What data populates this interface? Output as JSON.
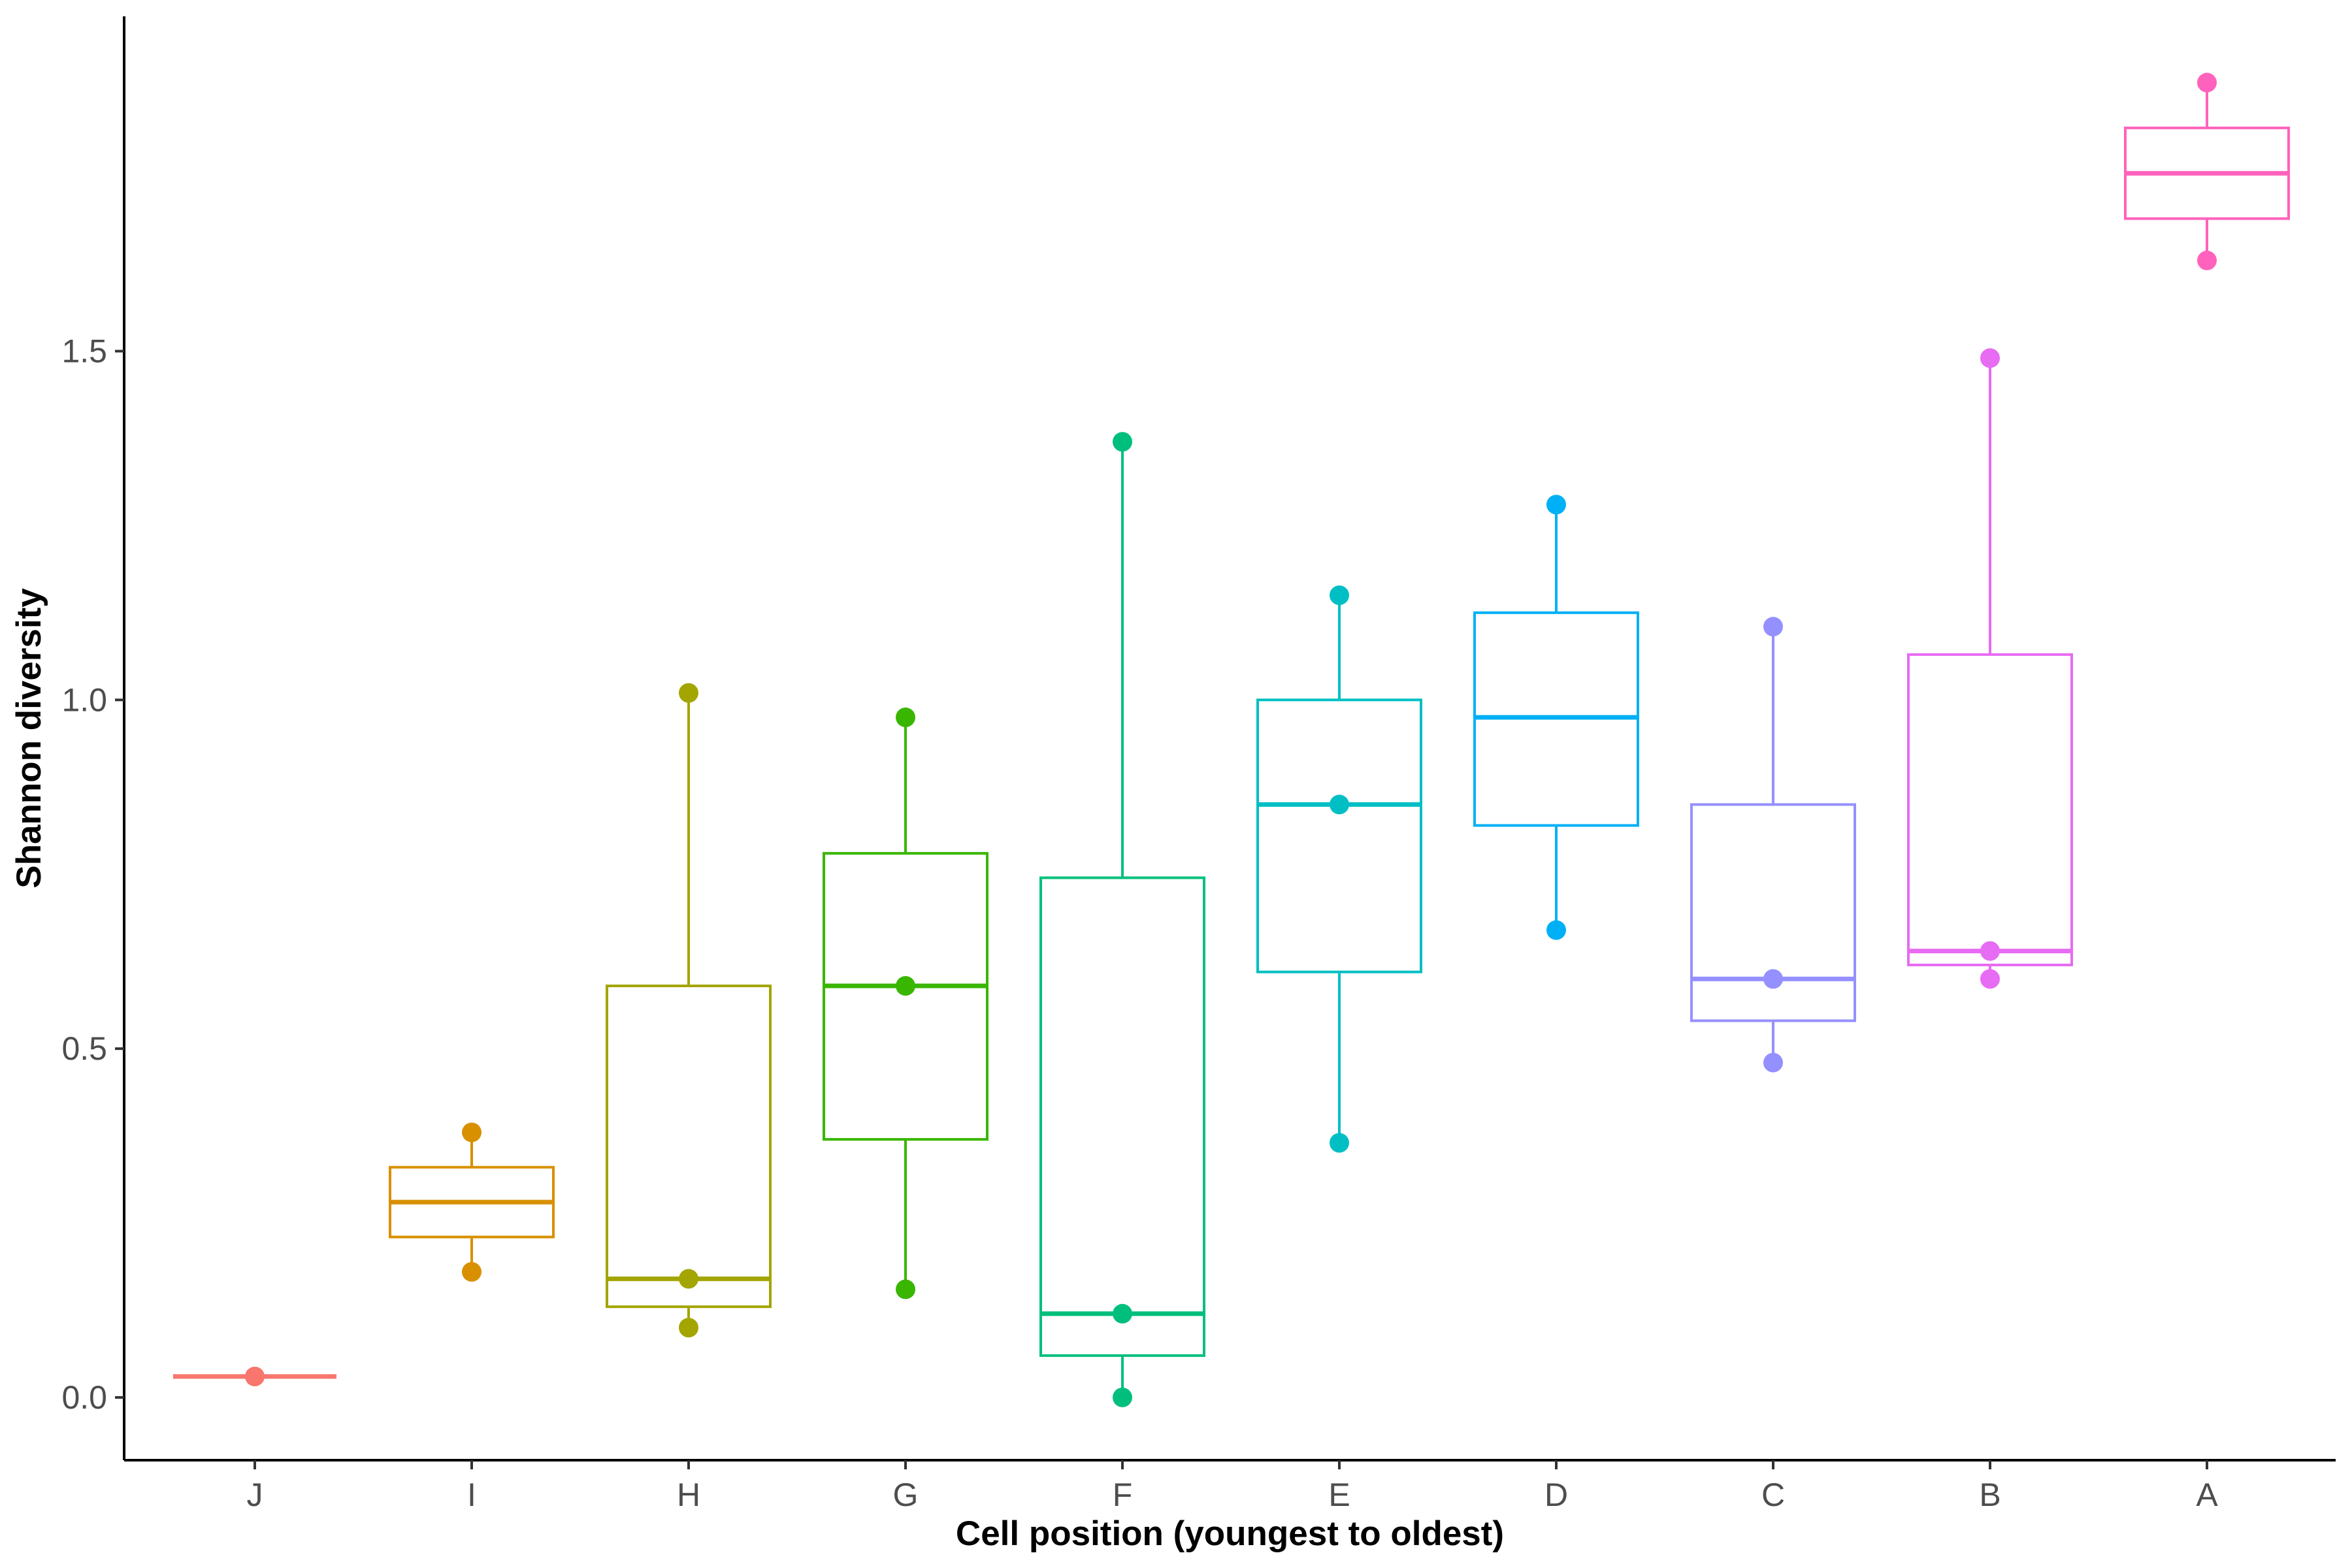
{
  "chart_data": {
    "type": "box",
    "title": "",
    "xlabel": "Cell position (youngest to oldest)",
    "ylabel": "Shannon diversity",
    "ylim": [
      -0.09,
      1.98
    ],
    "yticks": [
      "0.0",
      "0.5",
      "1.0",
      "1.5"
    ],
    "ytick_values": [
      0.0,
      0.5,
      1.0,
      1.5
    ],
    "grid": false,
    "legend": "none",
    "categories": [
      "J",
      "I",
      "H",
      "G",
      "F",
      "E",
      "D",
      "C",
      "B",
      "A"
    ],
    "boxes": [
      {
        "category": "J",
        "color": "#F8766D",
        "min": 0.03,
        "q1": 0.03,
        "median": 0.03,
        "q3": 0.03,
        "max": 0.03,
        "points": [
          0.03
        ]
      },
      {
        "category": "I",
        "color": "#D89000",
        "min": 0.18,
        "q1": 0.23,
        "median": 0.28,
        "q3": 0.33,
        "max": 0.38,
        "points": [
          0.38,
          0.18
        ]
      },
      {
        "category": "H",
        "color": "#A3A500",
        "min": 0.1,
        "q1": 0.13,
        "median": 0.17,
        "q3": 0.59,
        "max": 1.01,
        "points": [
          1.01,
          0.17,
          0.1
        ]
      },
      {
        "category": "G",
        "color": "#39B600",
        "min": 0.155,
        "q1": 0.37,
        "median": 0.59,
        "q3": 0.78,
        "max": 0.975,
        "points": [
          0.975,
          0.59,
          0.155
        ]
      },
      {
        "category": "F",
        "color": "#00BF7D",
        "min": 0.0,
        "q1": 0.06,
        "median": 0.12,
        "q3": 0.745,
        "max": 1.37,
        "points": [
          1.37,
          0.12,
          0.0
        ]
      },
      {
        "category": "E",
        "color": "#00BFC4",
        "min": 0.365,
        "q1": 0.61,
        "median": 0.85,
        "q3": 1.0,
        "max": 1.15,
        "points": [
          1.15,
          0.85,
          0.365
        ]
      },
      {
        "category": "D",
        "color": "#00B0F6",
        "min": 0.67,
        "q1": 0.82,
        "median": 0.975,
        "q3": 1.125,
        "max": 1.28,
        "points": [
          1.28,
          0.67
        ]
      },
      {
        "category": "C",
        "color": "#9590FF",
        "min": 0.48,
        "q1": 0.54,
        "median": 0.6,
        "q3": 0.85,
        "max": 1.105,
        "points": [
          1.105,
          0.6,
          0.48
        ]
      },
      {
        "category": "B",
        "color": "#E76BF3",
        "min": 0.6,
        "q1": 0.62,
        "median": 0.64,
        "q3": 1.065,
        "max": 1.49,
        "points": [
          1.49,
          0.64,
          0.6
        ]
      },
      {
        "category": "A",
        "color": "#FF62BC",
        "min": 1.63,
        "q1": 1.69,
        "median": 1.755,
        "q3": 1.82,
        "max": 1.885,
        "points": [
          1.885,
          1.63
        ]
      }
    ]
  }
}
